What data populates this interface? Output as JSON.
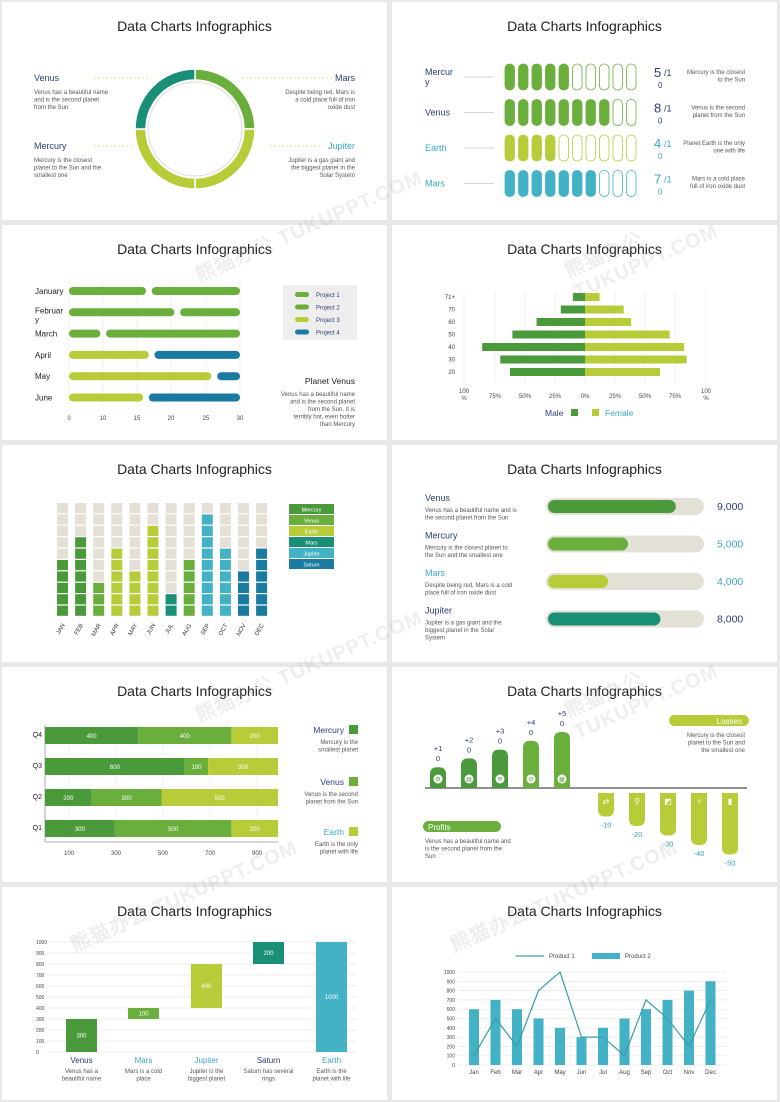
{
  "panel_title": "Data Charts Infographics",
  "colors": {
    "green_dark": "#4a9a3c",
    "green_mid": "#6aae3c",
    "lime": "#b8cc3a",
    "teal": "#1a8f78",
    "cyan": "#42b2c4",
    "blue": "#1a7aa0",
    "beige": "#e4e0d6",
    "navy": "#2c3e7a",
    "lightblue": "#3aa7c8"
  },
  "watermark": "熊猫办公 TUKUPPT.COM",
  "chart_data": [
    {
      "type": "pie",
      "title": "Data Charts Infographics",
      "slices": [
        {
          "name": "Venus",
          "value": 25,
          "desc": "Venus has a beautiful name and is the second planet from the Sun"
        },
        {
          "name": "Mars",
          "value": 25,
          "desc": "Despite being red, Mars is a cold place full of iron oxide dust"
        },
        {
          "name": "Jupiter",
          "value": 25,
          "desc": "Jupiter is a gas giant and the biggest planet in the Solar System"
        },
        {
          "name": "Mercury",
          "value": 25,
          "desc": "Mercury is the closest planet to the Sun and the smallest one"
        }
      ]
    },
    {
      "type": "bar",
      "title": "Data Charts Infographics",
      "rows": [
        {
          "name": "Mercury",
          "filled": 5,
          "total": 10,
          "num": "5",
          "den": "/1",
          "den2": "0",
          "desc": "Mercury is the closest to the Sun"
        },
        {
          "name": "Venus",
          "filled": 8,
          "total": 10,
          "num": "8",
          "den": "/1",
          "den2": "0",
          "desc": "Venus is the second planet from the Sun"
        },
        {
          "name": "Earth",
          "filled": 4,
          "total": 10,
          "num": "4",
          "den": "/1",
          "den2": "0",
          "desc": "Planet Earth is the only one with life"
        },
        {
          "name": "Mars",
          "filled": 7,
          "total": 10,
          "num": "7",
          "den": "/1",
          "den2": "0",
          "desc": "Mars is a cold place full of iron oxide dust"
        }
      ]
    },
    {
      "type": "bar",
      "title": "Data Charts Infographics",
      "categories": [
        "January",
        "February",
        "March",
        "April",
        "May",
        "June"
      ],
      "xticks": [
        "0",
        "10",
        "15",
        "20",
        "25",
        "30"
      ],
      "xlim": [
        0,
        30
      ],
      "segments": [
        [
          {
            "series": "Project 1",
            "start": 0,
            "end": 13.5
          },
          {
            "series": "Project 2",
            "start": 14.5,
            "end": 30
          }
        ],
        [
          {
            "series": "Project 1",
            "start": 0,
            "end": 18.5
          },
          {
            "series": "Project 2",
            "start": 19.5,
            "end": 30
          }
        ],
        [
          {
            "series": "Project 1",
            "start": 0,
            "end": 5.5
          },
          {
            "series": "Project 1",
            "start": 6.5,
            "end": 30
          }
        ],
        [
          {
            "series": "Project 3",
            "start": 0,
            "end": 14
          },
          {
            "series": "Project 4",
            "start": 15,
            "end": 30
          }
        ],
        [
          {
            "series": "Project 3",
            "start": 0,
            "end": 25
          },
          {
            "series": "Project 4",
            "start": 26,
            "end": 30
          }
        ],
        [
          {
            "series": "Project 3",
            "start": 0,
            "end": 13
          },
          {
            "series": "Project 4",
            "start": 14,
            "end": 30
          }
        ]
      ],
      "legend": [
        "Project 1",
        "Project 2",
        "Project 3",
        "Project 4"
      ],
      "note_title": "Planet Venus",
      "note_text": "Venus has a beautiful name and is the second planet from the Sun. It is terribly hot, even hotter than Mercury"
    },
    {
      "type": "bar",
      "title": "Data Charts Infographics",
      "categories": [
        "71+",
        "70",
        "60",
        "50",
        "40",
        "30",
        "20"
      ],
      "series": [
        {
          "name": "Male",
          "values": [
            -10,
            -20,
            -40,
            -60,
            -85,
            -70,
            -62
          ]
        },
        {
          "name": "Female",
          "values": [
            12,
            32,
            38,
            70,
            82,
            84,
            62
          ]
        }
      ],
      "xticks": [
        "100 %",
        "75%",
        "50%",
        "25%",
        "0%",
        "25%",
        "50%",
        "75%",
        "100 %"
      ]
    },
    {
      "type": "bar",
      "title": "Data Charts Infographics",
      "categories": [
        "JAN",
        "FEB",
        "MAR",
        "APR",
        "MAY",
        "JUN",
        "JUL",
        "AUG",
        "SEP",
        "OCT",
        "NOV",
        "DEC"
      ],
      "values": [
        5,
        7,
        3,
        6,
        4,
        8,
        2,
        5,
        9,
        6,
        4,
        6
      ],
      "total": 10,
      "legend": [
        "Mercury",
        "Venus",
        "Earth",
        "Mars",
        "Jupiter",
        "Saturn"
      ]
    },
    {
      "type": "bar",
      "title": "Data Charts Infographics",
      "rows": [
        {
          "name": "Venus",
          "desc": "Venus has a beautiful name and is the second planet from the Sun",
          "value": 9000,
          "label": "9,000",
          "pct": 0.83
        },
        {
          "name": "Mercury",
          "desc": "Mercury is the closest planet to the Sun and the smallest one",
          "value": 5000,
          "label": "5,000",
          "pct": 0.52
        },
        {
          "name": "Mars",
          "desc": "Despite being red, Mars is a cold place full of iron oxide dust",
          "value": 4000,
          "label": "4,000",
          "pct": 0.39
        },
        {
          "name": "Jupiter",
          "desc": "Jupiter is a gas giant and the biggest planet in the Solar System",
          "value": 8000,
          "label": "8,000",
          "pct": 0.73
        }
      ]
    },
    {
      "type": "bar",
      "title": "Data Charts Infographics",
      "categories": [
        "Q4",
        "Q3",
        "Q2",
        "Q1"
      ],
      "stacks": [
        [
          400,
          400,
          200
        ],
        [
          600,
          100,
          300
        ],
        [
          200,
          300,
          500
        ],
        [
          300,
          500,
          200
        ]
      ],
      "xticks": [
        "100",
        "300",
        "500",
        "700",
        "900"
      ],
      "legend": [
        {
          "name": "Mercury",
          "desc": "Mercury is the smallest planet"
        },
        {
          "name": "Venus",
          "desc": "Venus is the second planet from the Sun"
        },
        {
          "name": "Earth",
          "desc": "Earth is the only planet with life"
        }
      ]
    },
    {
      "type": "bar",
      "title": "Data Charts Infographics",
      "profits": [
        {
          "value": 1,
          "label1": "+1",
          "label2": "0"
        },
        {
          "value": 2,
          "label1": "+2",
          "label2": "0"
        },
        {
          "value": 3,
          "label1": "+3",
          "label2": "0"
        },
        {
          "value": 4,
          "label1": "+4",
          "label2": "0"
        },
        {
          "value": 5,
          "label1": "+5",
          "label2": "0"
        }
      ],
      "losses": [
        {
          "value": -10,
          "label": "-10"
        },
        {
          "value": -20,
          "label": "-20"
        },
        {
          "value": -30,
          "label": "-30"
        },
        {
          "value": -40,
          "label": "-40"
        },
        {
          "value": -50,
          "label": "-50"
        }
      ],
      "profits_title": "Profits",
      "profits_text": "Venus has a beautiful name and is the second planet from the Sun",
      "losses_title": "Losses",
      "losses_text": "Mercury is the closest planet to the Sun and the smallest one"
    },
    {
      "type": "bar",
      "title": "Data Charts Infographics",
      "categories": [
        "Venus",
        "Mars",
        "Jupiter",
        "Saturn",
        "Earth"
      ],
      "ranges": [
        [
          0,
          300
        ],
        [
          300,
          400
        ],
        [
          400,
          800
        ],
        [
          800,
          1000
        ],
        [
          0,
          1000
        ]
      ],
      "labels": [
        "300",
        "100",
        "400",
        "200",
        "1000"
      ],
      "descs": [
        "Venus has a beautiful name",
        "Mars is a cold place",
        "Jupiter is the biggest planet",
        "Saturn has several rings",
        "Earth is the planet with life"
      ],
      "yticks": [
        "0",
        "100",
        "200",
        "300",
        "400",
        "500",
        "600",
        "700",
        "800",
        "900",
        "1000"
      ],
      "ylim": [
        0,
        1000
      ]
    },
    {
      "type": "bar",
      "title": "Data Charts Infographics",
      "categories": [
        "Jan",
        "Feb",
        "Mar",
        "Apr",
        "May",
        "Jun",
        "Jul",
        "Aug",
        "Sep",
        "Oct",
        "Nov",
        "Dec"
      ],
      "series": [
        {
          "name": "Product 1",
          "type": "line",
          "values": [
            100,
            500,
            200,
            800,
            1000,
            300,
            300,
            100,
            700,
            500,
            200,
            700
          ]
        },
        {
          "name": "Product 2",
          "type": "bar",
          "values": [
            600,
            700,
            600,
            500,
            400,
            300,
            400,
            500,
            600,
            700,
            800,
            900
          ]
        }
      ],
      "yticks": [
        "0",
        "100",
        "200",
        "300",
        "400",
        "500",
        "600",
        "700",
        "800",
        "900",
        "1000"
      ],
      "ylim": [
        0,
        1000
      ]
    }
  ]
}
